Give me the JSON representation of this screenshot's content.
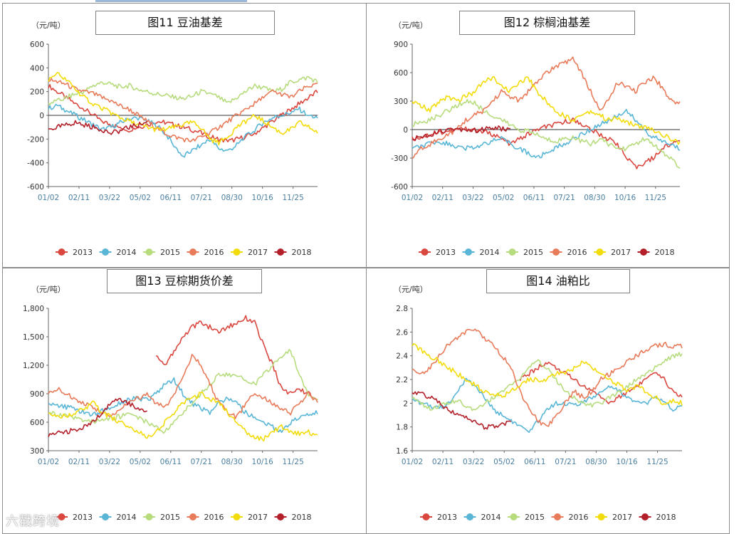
{
  "watermark": "六戳跨境",
  "legend_colors": [
    "#d9473f",
    "#59b6d6",
    "#b7dc7e",
    "#e77b5a",
    "#f3dc0c",
    "#b3202a"
  ],
  "chart_data": [
    {
      "id": "c11",
      "type": "line",
      "title": "图11 豆油基差",
      "unit": "（元/吨）",
      "ylim": [
        -600,
        600
      ],
      "yticks": [
        "600",
        "400",
        "200",
        "0",
        "-200",
        "-400",
        "-600"
      ],
      "xticks": [
        "01/02",
        "02/11",
        "03/22",
        "05/02",
        "06/11",
        "07/21",
        "08/30",
        "10/16",
        "11/25"
      ],
      "series": [
        {
          "name": "2013",
          "values": [
            250,
            200,
            150,
            100,
            50,
            0,
            -50,
            -80,
            -100,
            -120,
            -100,
            -80,
            -50,
            -60,
            -80,
            -100,
            -120,
            -150,
            -180,
            -200,
            -220,
            -200,
            -180,
            -150,
            -100,
            -50,
            0,
            50,
            100,
            150,
            200
          ]
        },
        {
          "name": "2014",
          "values": [
            60,
            80,
            40,
            0,
            -40,
            -80,
            -120,
            -100,
            -60,
            -30,
            -20,
            -50,
            -80,
            -150,
            -250,
            -350,
            -300,
            -250,
            -200,
            -280,
            -300,
            -250,
            -180,
            -120,
            -60,
            -20,
            0,
            20,
            50,
            0,
            -20
          ]
        },
        {
          "name": "2015",
          "values": [
            100,
            120,
            150,
            180,
            200,
            250,
            280,
            260,
            240,
            250,
            220,
            200,
            180,
            170,
            150,
            140,
            160,
            200,
            180,
            150,
            100,
            150,
            200,
            250,
            230,
            200,
            220,
            280,
            300,
            320,
            280
          ]
        },
        {
          "name": "2016",
          "values": [
            300,
            280,
            260,
            220,
            200,
            180,
            150,
            120,
            80,
            50,
            0,
            -50,
            -100,
            -150,
            -180,
            -200,
            -220,
            -180,
            -150,
            -100,
            -50,
            0,
            50,
            100,
            150,
            200,
            180,
            150,
            200,
            250,
            250
          ]
        },
        {
          "name": "2017",
          "values": [
            300,
            350,
            300,
            220,
            150,
            100,
            60,
            20,
            -20,
            -50,
            -80,
            -100,
            -120,
            -120,
            -100,
            -80,
            -60,
            -100,
            -200,
            -230,
            -180,
            -100,
            -50,
            0,
            -50,
            -100,
            -150,
            -120,
            -60,
            -100,
            -140
          ]
        },
        {
          "name": "2018",
          "values": [
            -120,
            -100,
            -80,
            -60,
            -80,
            -100,
            -120,
            -150,
            -130,
            -100,
            -80,
            -60
          ]
        }
      ]
    },
    {
      "id": "c12",
      "type": "line",
      "title": "图12 棕榈油基差",
      "unit": "（元/吨）",
      "ylim": [
        -600,
        900
      ],
      "yticks": [
        "900",
        "600",
        "300",
        "0",
        "-300",
        "-600"
      ],
      "xticks": [
        "01/02",
        "02/11",
        "03/22",
        "05/02",
        "06/11",
        "07/21",
        "08/30",
        "10/16",
        "11/25"
      ],
      "series": [
        {
          "name": "2013",
          "values": [
            -100,
            -80,
            -50,
            -30,
            -20,
            0,
            10,
            0,
            -20,
            -50,
            -100,
            -150,
            -100,
            -50,
            0,
            30,
            50,
            80,
            100,
            60,
            0,
            -50,
            -100,
            -150,
            -300,
            -400,
            -350,
            -300,
            -200,
            -150,
            -100
          ]
        },
        {
          "name": "2014",
          "values": [
            -200,
            -180,
            -150,
            -120,
            -150,
            -180,
            -200,
            -180,
            -150,
            -120,
            -100,
            -150,
            -200,
            -250,
            -300,
            -250,
            -200,
            -150,
            -100,
            -50,
            0,
            50,
            100,
            150,
            200,
            100,
            0,
            -80,
            -120,
            -160,
            -200
          ]
        },
        {
          "name": "2015",
          "values": [
            50,
            80,
            100,
            150,
            200,
            250,
            300,
            280,
            200,
            150,
            100,
            50,
            0,
            -20,
            -50,
            -100,
            -120,
            -100,
            -80,
            -120,
            -150,
            -100,
            -150,
            -200,
            -200,
            -150,
            -100,
            -150,
            -250,
            -300,
            -400
          ]
        },
        {
          "name": "2016",
          "values": [
            -300,
            -200,
            -150,
            -100,
            -50,
            0,
            100,
            150,
            200,
            300,
            400,
            350,
            300,
            400,
            500,
            600,
            650,
            700,
            750,
            600,
            400,
            200,
            300,
            500,
            450,
            400,
            500,
            550,
            450,
            300,
            280
          ]
        },
        {
          "name": "2017",
          "values": [
            300,
            250,
            200,
            300,
            350,
            300,
            350,
            400,
            500,
            550,
            450,
            400,
            500,
            550,
            400,
            300,
            200,
            150,
            100,
            150,
            200,
            150,
            100,
            120,
            80,
            50,
            20,
            0,
            -50,
            -100,
            -150
          ]
        },
        {
          "name": "2018",
          "values": [
            -100,
            -80,
            -50,
            -20,
            0,
            10,
            0,
            -10,
            0,
            20,
            10,
            0
          ]
        }
      ]
    },
    {
      "id": "c13",
      "type": "line",
      "title": "图13 豆棕期货价差",
      "unit": "（元/吨）",
      "ylim": [
        300,
        1800
      ],
      "yticks": [
        "1,800",
        "1,500",
        "1,200",
        "900",
        "600",
        "300"
      ],
      "xticks": [
        "01/02",
        "02/11",
        "03/22",
        "05/02",
        "06/11",
        "07/21",
        "08/30",
        "10/16",
        "11/25"
      ],
      "series": [
        {
          "name": "2013",
          "values": [
            null,
            null,
            null,
            null,
            null,
            null,
            null,
            null,
            null,
            null,
            null,
            null,
            1300,
            1200,
            1350,
            1500,
            1600,
            1650,
            1600,
            1550,
            1600,
            1650,
            1700,
            1650,
            1400,
            1200,
            950,
            900,
            950,
            900,
            850
          ]
        },
        {
          "name": "2014",
          "values": [
            800,
            780,
            760,
            740,
            700,
            680,
            720,
            760,
            800,
            840,
            850,
            830,
            900,
            1000,
            1050,
            900,
            800,
            750,
            700,
            800,
            850,
            800,
            700,
            650,
            600,
            550,
            500,
            600,
            650,
            680,
            700
          ]
        },
        {
          "name": "2015",
          "values": [
            700,
            680,
            660,
            640,
            620,
            600,
            620,
            640,
            660,
            700,
            650,
            600,
            550,
            500,
            600,
            700,
            800,
            900,
            1000,
            1100,
            1100,
            1080,
            1050,
            1000,
            1100,
            1200,
            1300,
            1350,
            1100,
            900,
            850
          ]
        },
        {
          "name": "2016",
          "values": [
            900,
            950,
            900,
            850,
            800,
            750,
            700,
            650,
            750,
            800,
            850,
            900,
            800,
            750,
            900,
            1100,
            1300,
            1200,
            1000,
            800,
            700,
            650,
            800,
            900,
            850,
            800,
            750,
            700,
            800,
            900,
            800
          ]
        },
        {
          "name": "2017",
          "values": [
            700,
            680,
            650,
            700,
            750,
            800,
            700,
            650,
            600,
            550,
            500,
            450,
            500,
            600,
            700,
            800,
            850,
            900,
            850,
            800,
            700,
            600,
            500,
            450,
            420,
            500,
            550,
            500,
            480,
            500,
            450
          ]
        },
        {
          "name": "2018",
          "values": [
            450,
            480,
            500,
            520,
            550,
            600,
            700,
            800,
            850,
            800,
            750,
            700
          ]
        }
      ]
    },
    {
      "id": "c14",
      "type": "line",
      "title": "图14 油粕比",
      "unit": "（元/吨）",
      "ylim": [
        1.6,
        2.8
      ],
      "yticks": [
        "2.8",
        "2.6",
        "2.4",
        "2.2",
        "2",
        "1.8",
        "1.6"
      ],
      "xticks": [
        "01/02",
        "02/11",
        "03/22",
        "05/02",
        "06/11",
        "07/21",
        "08/30",
        "10/16",
        "11/25"
      ],
      "series": [
        {
          "name": "2013",
          "values": [
            null,
            null,
            null,
            null,
            null,
            null,
            null,
            null,
            null,
            null,
            null,
            null,
            2.2,
            2.25,
            2.3,
            2.35,
            2.3,
            2.25,
            2.2,
            2.15,
            2.1,
            2.05,
            2.0,
            2.05,
            2.1,
            2.15,
            2.2,
            2.25,
            2.2,
            2.1,
            2.05
          ]
        },
        {
          "name": "2014",
          "values": [
            2.05,
            2.0,
            1.98,
            1.95,
            2.0,
            2.1,
            2.2,
            2.15,
            2.05,
            1.95,
            1.9,
            1.85,
            1.8,
            1.75,
            1.85,
            1.95,
            2.0,
            2.0,
            1.98,
            2.0,
            2.05,
            2.1,
            2.15,
            2.1,
            2.05,
            2.0,
            2.0,
            2.05,
            2.0,
            1.95,
            1.98
          ]
        },
        {
          "name": "2015",
          "values": [
            2.05,
            2.0,
            1.95,
            1.98,
            2.0,
            2.02,
            1.98,
            1.95,
            2.0,
            2.05,
            2.1,
            2.15,
            2.2,
            2.3,
            2.35,
            2.3,
            2.2,
            2.1,
            2.05,
            2.0,
            1.98,
            2.0,
            2.05,
            2.1,
            2.15,
            2.2,
            2.25,
            2.3,
            2.35,
            2.4,
            2.42
          ]
        },
        {
          "name": "2016",
          "values": [
            2.3,
            2.25,
            2.3,
            2.4,
            2.5,
            2.55,
            2.6,
            2.62,
            2.55,
            2.5,
            2.4,
            2.3,
            2.1,
            1.95,
            1.85,
            1.8,
            1.9,
            2.0,
            2.1,
            2.05,
            2.1,
            2.2,
            2.25,
            2.3,
            2.35,
            2.4,
            2.45,
            2.48,
            2.5,
            2.48,
            2.48
          ]
        },
        {
          "name": "2017",
          "values": [
            2.5,
            2.45,
            2.4,
            2.35,
            2.3,
            2.25,
            2.2,
            2.15,
            2.1,
            2.08,
            2.05,
            2.1,
            2.15,
            2.2,
            2.2,
            2.2,
            2.25,
            2.25,
            2.3,
            2.35,
            2.3,
            2.25,
            2.2,
            2.15,
            2.1,
            2.15,
            2.1,
            2.05,
            2.0,
            2.02,
            2.0
          ]
        },
        {
          "name": "2018",
          "values": [
            2.1,
            2.08,
            2.05,
            2.0,
            1.95,
            1.9,
            1.88,
            1.85,
            1.8,
            1.8,
            1.82,
            1.85
          ]
        }
      ]
    }
  ]
}
